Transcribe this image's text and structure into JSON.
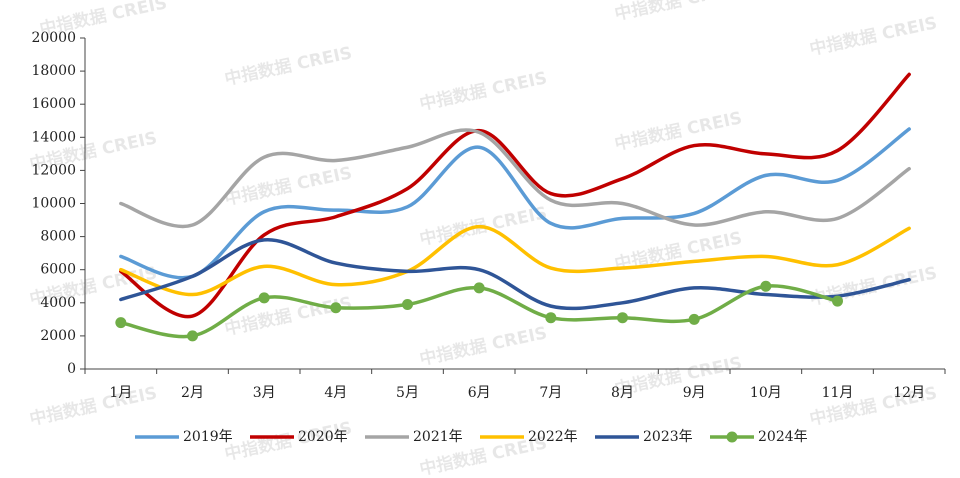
{
  "chart_data": {
    "type": "line",
    "watermark": "中指数据 CREIS",
    "categories": [
      "1月",
      "2月",
      "3月",
      "4月",
      "5月",
      "6月",
      "7月",
      "8月",
      "9月",
      "10月",
      "11月",
      "12月"
    ],
    "series": [
      {
        "name": "2019年",
        "color": "#5b9bd5",
        "values": [
          6800,
          5600,
          9500,
          9600,
          9800,
          13400,
          8800,
          9100,
          9400,
          11700,
          11400,
          14500
        ]
      },
      {
        "name": "2020年",
        "color": "#c00000",
        "values": [
          5900,
          3200,
          8100,
          9200,
          10900,
          14400,
          10600,
          11500,
          13500,
          13000,
          13200,
          17800
        ]
      },
      {
        "name": "2021年",
        "color": "#a5a5a5",
        "values": [
          10000,
          8700,
          12800,
          12600,
          13400,
          14300,
          10200,
          10000,
          8700,
          9500,
          9100,
          12100
        ]
      },
      {
        "name": "2022年",
        "color": "#ffc000",
        "values": [
          6000,
          4500,
          6200,
          5100,
          5900,
          8600,
          6100,
          6100,
          6500,
          6800,
          6300,
          8500
        ]
      },
      {
        "name": "2023年",
        "color": "#2f5597",
        "values": [
          4200,
          5600,
          7800,
          6400,
          5900,
          6000,
          3800,
          4000,
          4900,
          4500,
          4400,
          5400
        ]
      },
      {
        "name": "2024年",
        "color": "#70ad47",
        "marker": true,
        "values": [
          2800,
          2000,
          4300,
          3700,
          3900,
          4900,
          3100,
          3100,
          3000,
          5000,
          4100,
          null
        ]
      }
    ],
    "ylim": [
      0,
      20000
    ],
    "yticks": [
      0,
      2000,
      4000,
      6000,
      8000,
      10000,
      12000,
      14000,
      16000,
      18000,
      20000
    ],
    "legend": "bottom"
  }
}
